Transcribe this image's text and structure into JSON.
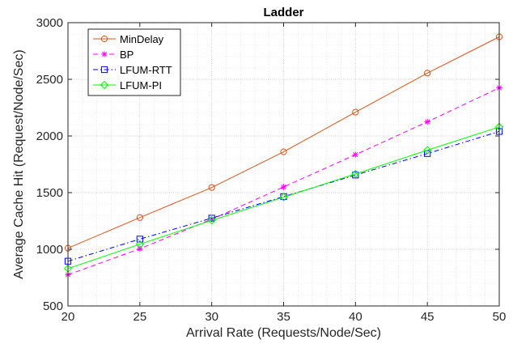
{
  "chart_data": {
    "type": "line",
    "title": "Ladder",
    "xlabel": "Arrival Rate (Requests/Node/Sec)",
    "ylabel": "Average Cache Hit (Request/Node/Sec)",
    "xlim": [
      20,
      50
    ],
    "ylim": [
      500,
      3000
    ],
    "x_ticks": [
      20,
      25,
      30,
      35,
      40,
      45,
      50
    ],
    "y_ticks": [
      500,
      1000,
      1500,
      2000,
      2500,
      3000
    ],
    "x_tick_labels": [
      "20",
      "25",
      "30",
      "35",
      "40",
      "45",
      "50"
    ],
    "y_tick_labels": [
      "500",
      "1000",
      "1500",
      "2000",
      "2500",
      "3000"
    ],
    "grid": true,
    "minor_grid": true,
    "legend_position": "top-left",
    "x": [
      20,
      25,
      30,
      35,
      40,
      45,
      50
    ],
    "series": [
      {
        "name": "MinDelay",
        "values": [
          1010,
          1280,
          1545,
          1860,
          2210,
          2555,
          2875
        ],
        "color": "#d95319",
        "dash": "solid",
        "marker": "circle"
      },
      {
        "name": "BP",
        "values": [
          775,
          1005,
          1265,
          1550,
          1835,
          2125,
          2425
        ],
        "color": "#ff00ff",
        "dash": "dashed",
        "marker": "star"
      },
      {
        "name": "LFUM-RTT",
        "values": [
          895,
          1090,
          1275,
          1465,
          1655,
          1845,
          2040
        ],
        "color": "#0000ff",
        "dash": "dashdot",
        "marker": "square"
      },
      {
        "name": "LFUM-PI",
        "values": [
          830,
          1045,
          1255,
          1460,
          1665,
          1875,
          2080
        ],
        "color": "#00ff00",
        "dash": "solid",
        "marker": "diamond"
      }
    ]
  }
}
